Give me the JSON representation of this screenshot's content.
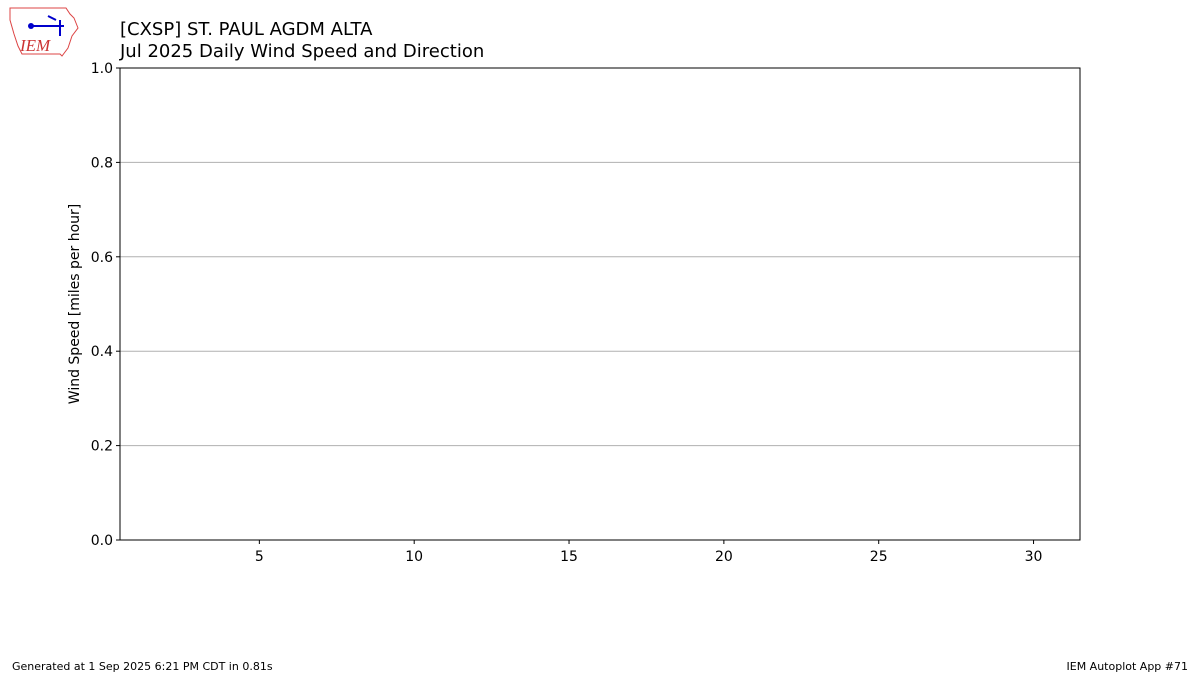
{
  "chart_data": {
    "type": "bar",
    "title": "[CXSP] ST. PAUL AGDM  ALTA",
    "subtitle": "Jul 2025 Daily Wind Speed and Direction",
    "ylabel": "Wind Speed [miles per hour]",
    "xlim": [
      0.5,
      31.5
    ],
    "xticks": [
      5,
      10,
      15,
      20,
      25,
      30
    ],
    "ylim": [
      0,
      1
    ],
    "yticks": [
      {
        "value": 0,
        "label": "0.0"
      },
      {
        "value": 0.2,
        "label": "0.2"
      },
      {
        "value": 0.4,
        "label": "0.4"
      },
      {
        "value": 0.6,
        "label": "0.6"
      },
      {
        "value": 0.8,
        "label": "0.8"
      },
      {
        "value": 1,
        "label": "1.0"
      }
    ],
    "grid": true
  },
  "logo": {
    "text": "IEM"
  },
  "footer": {
    "left": "Generated at 1 Sep 2025 6:21 PM CDT in 0.81s",
    "right": "IEM Autoplot App #71"
  }
}
